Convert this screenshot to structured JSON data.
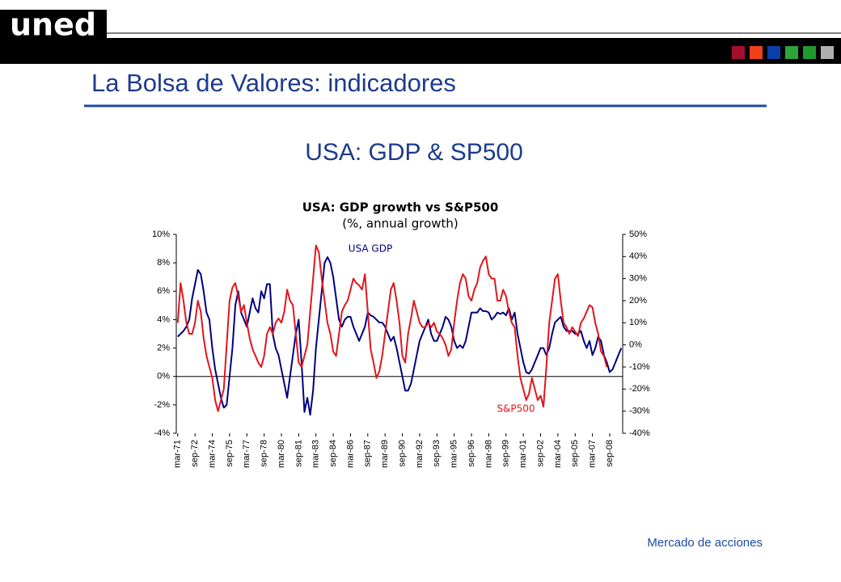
{
  "header": {
    "logo": "uned",
    "title": "La Bolsa de Valores: indicadores",
    "subtitle": "USA: GDP & SP500"
  },
  "footer": "Mercado de acciones",
  "chart_data": {
    "type": "line",
    "title": "USA: GDP growth vs S&P500",
    "subtitle": "(%, annual growth)",
    "annotations": [
      "USA GDP",
      "S&P500"
    ],
    "categories": [
      "mar-71",
      null,
      null,
      null,
      null,
      null,
      "sep-72",
      null,
      null,
      null,
      null,
      null,
      "mar-74",
      null,
      null,
      null,
      null,
      null,
      "sep-75",
      null,
      null,
      null,
      null,
      null,
      "mar-77",
      null,
      null,
      null,
      null,
      null,
      "sep-78",
      null,
      null,
      null,
      null,
      null,
      "mar-80",
      null,
      null,
      null,
      null,
      null,
      "sep-81",
      null,
      null,
      null,
      null,
      null,
      "mar-83",
      null,
      null,
      null,
      null,
      null,
      "sep-84",
      null,
      null,
      null,
      null,
      null,
      "mar-86",
      null,
      null,
      null,
      null,
      null,
      "sep-87",
      null,
      null,
      null,
      null,
      null,
      "mar-89",
      null,
      null,
      null,
      null,
      null,
      "sep-90",
      null,
      null,
      null,
      null,
      null,
      "mar-92",
      null,
      null,
      null,
      null,
      null,
      "sep-93",
      null,
      null,
      null,
      null,
      null,
      "mar-95",
      null,
      null,
      null,
      null,
      null,
      "sep-96",
      null,
      null,
      null,
      null,
      null,
      "mar-98",
      null,
      null,
      null,
      null,
      null,
      "sep-99",
      null,
      null,
      null,
      null,
      null,
      "mar-01",
      null,
      null,
      null,
      null,
      null,
      "sep-02",
      null,
      null,
      null,
      null,
      null,
      "mar-04",
      null,
      null,
      null,
      null,
      null,
      "sep-05",
      null,
      null,
      null,
      null,
      null,
      "mar-07",
      null,
      null,
      null,
      null,
      null,
      "sep-08",
      null,
      null,
      null,
      null
    ],
    "series": [
      {
        "name": "USA GDP",
        "color": "#000080",
        "axis": "y",
        "values": [
          2.8,
          3,
          3.2,
          3.5,
          4,
          5.5,
          6.5,
          7.5,
          7.2,
          6,
          4.5,
          4,
          2,
          0.5,
          -0.5,
          -1.5,
          -2.2,
          -2,
          0,
          2,
          5,
          6,
          4.5,
          4,
          3.5,
          4.5,
          5.5,
          4.8,
          4.5,
          6,
          5.5,
          6.5,
          6.5,
          3,
          2,
          1.5,
          0.5,
          -0.5,
          -1.5,
          0,
          1.5,
          3,
          4,
          1,
          -2.5,
          -1.5,
          -2.7,
          -1,
          2,
          4,
          6,
          8,
          8.4,
          8,
          7,
          5.5,
          4,
          3.5,
          4,
          4.2,
          4.2,
          3.5,
          3,
          2.5,
          3,
          3.5,
          4.5,
          4.3,
          4.2,
          4,
          3.8,
          3.8,
          3.5,
          3,
          2.5,
          2.8,
          2,
          1,
          0,
          -1,
          -1,
          -0.5,
          0.5,
          1.5,
          2.5,
          3,
          3.5,
          4,
          3,
          2.5,
          2.5,
          3,
          3.5,
          4.2,
          4,
          3.5,
          2.5,
          2,
          2.2,
          2,
          2.5,
          3.5,
          4.5,
          4.5,
          4.5,
          4.8,
          4.6,
          4.6,
          4.5,
          4,
          4.2,
          4.5,
          4.4,
          4.5,
          4.3,
          4.8,
          4,
          4.5,
          3,
          2,
          1,
          0.3,
          0.2,
          0.5,
          1,
          1.5,
          2,
          2,
          1.5,
          2,
          3,
          3.8,
          4,
          4.2,
          3.5,
          3.2,
          3.2,
          3.2,
          3,
          3,
          3.2,
          2.5,
          2,
          2.5,
          1.5,
          2,
          2.8,
          2.5,
          1.5,
          1,
          0.3,
          0.5,
          1,
          1.5,
          2
        ]
      },
      {
        "name": "S&P500",
        "color": "#e0161c",
        "axis": "y2",
        "values": [
          10,
          28,
          20,
          10,
          5,
          5,
          10,
          20,
          15,
          3,
          -5,
          -10,
          -15,
          -25,
          -30,
          -25,
          -20,
          0,
          20,
          26,
          28,
          22,
          15,
          18,
          10,
          3,
          -2,
          -5,
          -8,
          -10,
          -5,
          5,
          8,
          5,
          10,
          12,
          10,
          15,
          25,
          20,
          18,
          5,
          -8,
          -10,
          -5,
          0,
          15,
          30,
          45,
          42,
          30,
          20,
          10,
          5,
          -3,
          -5,
          5,
          15,
          18,
          20,
          25,
          30,
          28,
          27,
          25,
          32,
          15,
          -2,
          -8,
          -15,
          -12,
          -5,
          5,
          15,
          25,
          28,
          20,
          10,
          -5,
          -8,
          5,
          12,
          20,
          15,
          10,
          8,
          8,
          10,
          8,
          10,
          6,
          5,
          3,
          0,
          -5,
          -2,
          10,
          20,
          28,
          32,
          30,
          22,
          20,
          25,
          28,
          35,
          38,
          40,
          32,
          30,
          30,
          20,
          20,
          25,
          22,
          15,
          10,
          8,
          -5,
          -15,
          -20,
          -25,
          -22,
          -15,
          -20,
          -25,
          -23,
          -28,
          -10,
          10,
          20,
          30,
          32,
          20,
          10,
          8,
          5,
          8,
          6,
          4,
          10,
          12,
          15,
          18,
          17,
          10,
          5,
          -3,
          -5,
          -10,
          null,
          null,
          null,
          null,
          null
        ]
      }
    ],
    "ylim": [
      -4,
      10
    ],
    "yticks": [
      {
        "value": -4,
        "label": "-4%"
      },
      {
        "value": -2,
        "label": "-2%"
      },
      {
        "value": 0,
        "label": "0%"
      },
      {
        "value": 2,
        "label": "2%"
      },
      {
        "value": 4,
        "label": "4%"
      },
      {
        "value": 6,
        "label": "6%"
      },
      {
        "value": 8,
        "label": "8%"
      },
      {
        "value": 10,
        "label": "10%"
      }
    ],
    "y2lim": [
      -40,
      50
    ],
    "y2ticks": [
      {
        "value": -40,
        "label": "-40%"
      },
      {
        "value": -30,
        "label": "-30%"
      },
      {
        "value": -20,
        "label": "-20%"
      },
      {
        "value": -10,
        "label": "-10%"
      },
      {
        "value": 0,
        "label": "0%"
      },
      {
        "value": 10,
        "label": "10%"
      },
      {
        "value": 20,
        "label": "20%"
      },
      {
        "value": 30,
        "label": "30%"
      },
      {
        "value": 40,
        "label": "40%"
      },
      {
        "value": 50,
        "label": "50%"
      }
    ],
    "grid": false
  }
}
